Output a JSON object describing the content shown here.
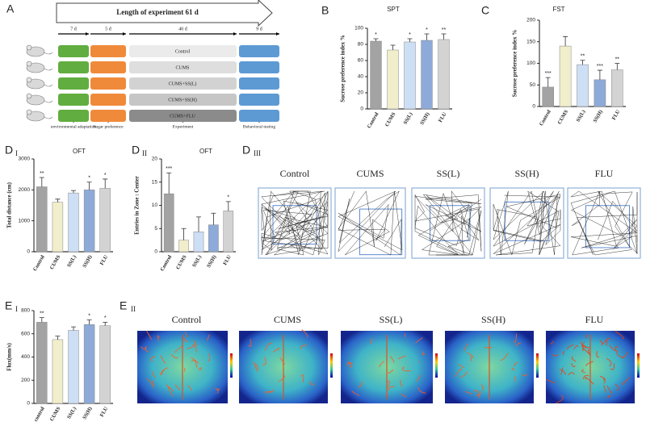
{
  "panel_a": {
    "label": "A",
    "header": "Length of experiment 61 d",
    "durations": [
      "7 d",
      "5 d",
      "40 d",
      "9 d"
    ],
    "groups": [
      "Control",
      "CUMS",
      "CUMS+SS(L)",
      "CUMS+SS(H)",
      "CUMS+FLU"
    ],
    "stages": [
      "environmental adaptation",
      "Sugar preference",
      "Experiment",
      "Behavioral testing"
    ]
  },
  "chart_data": [
    {
      "type": "bar",
      "panel": "B",
      "title": "SPT",
      "ylabel": "Sucrose preference index %",
      "categories": [
        "Control",
        "CUMS",
        "SS(L)",
        "SS(H)",
        "FLU"
      ],
      "values": [
        84,
        73,
        83,
        85,
        86
      ],
      "errors": [
        3,
        6,
        4,
        8,
        7
      ],
      "annotations": [
        "*",
        null,
        "*",
        "*",
        "**"
      ],
      "colors": [
        "#a3a3a3",
        "#f0eecb",
        "#cddff5",
        "#8eaad8",
        "#d3d3d3"
      ],
      "ylim": [
        0,
        100
      ],
      "yticks": [
        0,
        20,
        40,
        60,
        80,
        100
      ]
    },
    {
      "type": "bar",
      "panel": "C",
      "title": "FST",
      "ylabel": "Sucrose preference index %",
      "categories": [
        "Control",
        "CUMS",
        "SS(L)",
        "SS(H)",
        "FLU"
      ],
      "values": [
        45,
        140,
        97,
        62,
        85
      ],
      "errors": [
        22,
        22,
        10,
        22,
        15
      ],
      "annotations": [
        "***",
        null,
        "**",
        "***",
        "**"
      ],
      "colors": [
        "#a3a3a3",
        "#f0eecb",
        "#cddff5",
        "#8eaad8",
        "#d3d3d3"
      ],
      "ylim": [
        0,
        200
      ],
      "yticks": [
        0,
        50,
        100,
        150,
        200
      ]
    },
    {
      "type": "bar",
      "panel": "D",
      "subpanel": "I",
      "title": "OFT",
      "ylabel": "Total distance (cm)",
      "categories": [
        "Control",
        "CUMS",
        "SS(L)",
        "SS(H)",
        "FLU"
      ],
      "values": [
        2100,
        1600,
        1900,
        2000,
        2050
      ],
      "errors": [
        300,
        100,
        80,
        250,
        300
      ],
      "annotations": [
        "**",
        null,
        null,
        "*",
        "*"
      ],
      "colors": [
        "#a3a3a3",
        "#f0eecb",
        "#cddff5",
        "#8eaad8",
        "#d3d3d3"
      ],
      "ylim": [
        0,
        3000
      ],
      "yticks": [
        0,
        1000,
        2000,
        3000
      ]
    },
    {
      "type": "bar",
      "panel": "D",
      "subpanel": "II",
      "title": "OFT",
      "ylabel": "Entries in Zone : Center",
      "categories": [
        "Control",
        "CUMS",
        "SS(L)",
        "SS(H)",
        "FLU"
      ],
      "values": [
        12.5,
        2.5,
        4.3,
        5.8,
        8.8
      ],
      "errors": [
        4.5,
        2.5,
        3.2,
        2.5,
        2
      ],
      "annotations": [
        "***",
        null,
        null,
        null,
        "*"
      ],
      "colors": [
        "#a3a3a3",
        "#f0eecb",
        "#cddff5",
        "#8eaad8",
        "#d3d3d3"
      ],
      "ylim": [
        0,
        20
      ],
      "yticks": [
        0,
        5,
        10,
        15,
        20
      ]
    },
    {
      "type": "bar",
      "panel": "E",
      "subpanel": "I",
      "ylabel": "Flux(mm/s)",
      "categories": [
        "control",
        "CUMS",
        "SS(L)",
        "SS(H)",
        "FLU"
      ],
      "values": [
        700,
        550,
        630,
        680,
        670
      ],
      "errors": [
        40,
        30,
        30,
        40,
        30
      ],
      "annotations": [
        "**",
        null,
        null,
        "*",
        "*"
      ],
      "colors": [
        "#a3a3a3",
        "#f0eecb",
        "#cddff5",
        "#8eaad8",
        "#d3d3d3"
      ],
      "ylim": [
        0,
        800
      ],
      "yticks": [
        0,
        200,
        400,
        600,
        800
      ]
    }
  ],
  "panel_d3": {
    "panel": "D",
    "subpanel": "III",
    "groups": [
      "Control",
      "CUMS",
      "SS(L)",
      "SS(H)",
      "FLU"
    ]
  },
  "panel_e2": {
    "panel": "E",
    "subpanel": "II",
    "groups": [
      "Control",
      "CUMS",
      "SS(L)",
      "SS(H)",
      "FLU"
    ]
  }
}
